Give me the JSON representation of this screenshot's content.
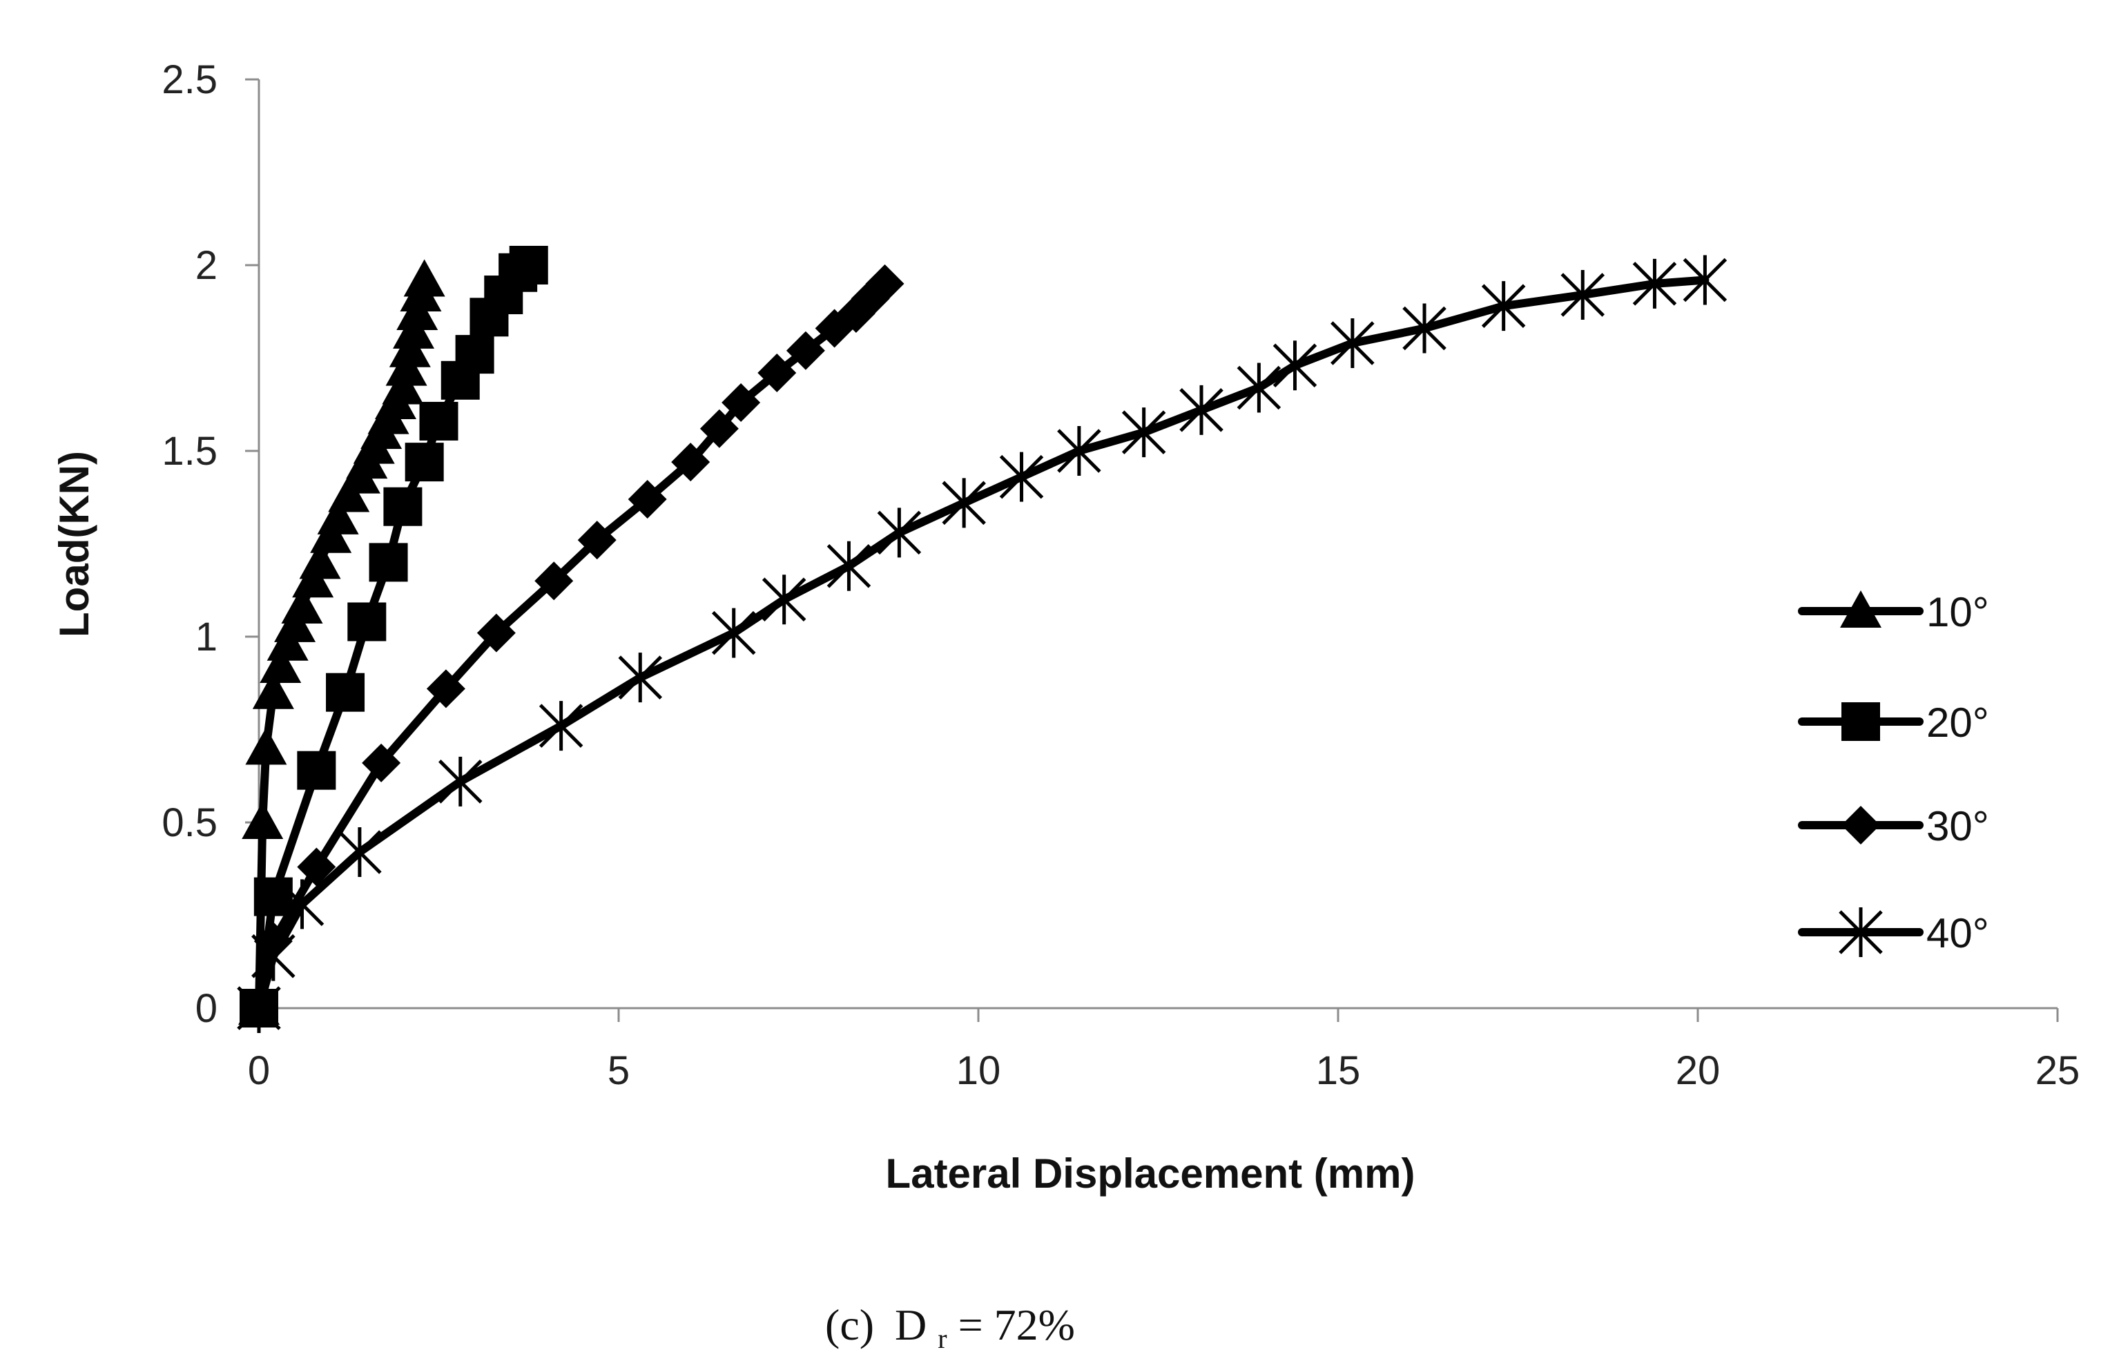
{
  "chart_data": {
    "type": "line",
    "xlabel": "Lateral Displacement (mm)",
    "ylabel": "Load(KN)",
    "xlim": [
      0,
      25
    ],
    "ylim": [
      0,
      2.5
    ],
    "xticks": [
      0,
      5,
      10,
      15,
      20,
      25
    ],
    "yticks": [
      0,
      0.5,
      1,
      1.5,
      2,
      2.5
    ],
    "xtick_labels": [
      "0",
      "5",
      "10",
      "15",
      "20",
      "25"
    ],
    "ytick_labels": [
      "0",
      "0.5",
      "1",
      "1.5",
      "2",
      "2.5"
    ],
    "grid": false,
    "legend_position": "right",
    "line_color": "#000000",
    "series": [
      {
        "name": "10°",
        "marker": "triangle",
        "x": [
          0.0,
          0.05,
          0.1,
          0.2,
          0.3,
          0.4,
          0.5,
          0.6,
          0.75,
          0.85,
          1.0,
          1.1,
          1.25,
          1.4,
          1.5,
          1.6,
          1.7,
          1.8,
          1.9,
          2.0,
          2.05,
          2.1,
          2.15,
          2.2,
          2.25,
          2.3
        ],
        "y": [
          0.0,
          0.5,
          0.7,
          0.85,
          0.92,
          0.98,
          1.03,
          1.08,
          1.15,
          1.2,
          1.27,
          1.32,
          1.38,
          1.43,
          1.47,
          1.51,
          1.55,
          1.59,
          1.63,
          1.67,
          1.72,
          1.77,
          1.82,
          1.87,
          1.92,
          1.96
        ]
      },
      {
        "name": "20°",
        "marker": "square",
        "x": [
          0.0,
          0.2,
          0.8,
          1.2,
          1.5,
          1.8,
          2.0,
          2.3,
          2.5,
          2.8,
          3.0,
          3.2,
          3.4,
          3.6,
          3.75
        ],
        "y": [
          0.0,
          0.3,
          0.64,
          0.85,
          1.04,
          1.2,
          1.35,
          1.47,
          1.58,
          1.69,
          1.76,
          1.86,
          1.92,
          1.98,
          2.0
        ]
      },
      {
        "name": "30°",
        "marker": "diamond",
        "x": [
          0.0,
          0.2,
          0.8,
          1.7,
          2.6,
          3.3,
          4.1,
          4.7,
          5.4,
          6.0,
          6.4,
          6.7,
          7.2,
          7.6,
          8.0,
          8.3,
          8.5,
          8.7
        ],
        "y": [
          0.0,
          0.18,
          0.38,
          0.66,
          0.86,
          1.01,
          1.15,
          1.26,
          1.37,
          1.47,
          1.56,
          1.63,
          1.71,
          1.77,
          1.83,
          1.87,
          1.91,
          1.95
        ]
      },
      {
        "name": "40°",
        "marker": "star",
        "x": [
          0.0,
          0.2,
          0.6,
          1.4,
          2.8,
          4.2,
          5.3,
          6.6,
          7.3,
          8.2,
          8.9,
          9.8,
          10.6,
          11.4,
          12.3,
          13.1,
          13.9,
          14.4,
          15.2,
          16.2,
          17.3,
          18.4,
          19.4,
          20.1
        ],
        "y": [
          0.0,
          0.14,
          0.28,
          0.42,
          0.61,
          0.76,
          0.89,
          1.01,
          1.1,
          1.19,
          1.28,
          1.36,
          1.43,
          1.5,
          1.55,
          1.61,
          1.67,
          1.73,
          1.79,
          1.83,
          1.89,
          1.92,
          1.95,
          1.96
        ]
      }
    ]
  },
  "caption": {
    "panel": "(c)",
    "text_main": "D",
    "subscript": "r",
    "text_rest": " = 72%"
  }
}
